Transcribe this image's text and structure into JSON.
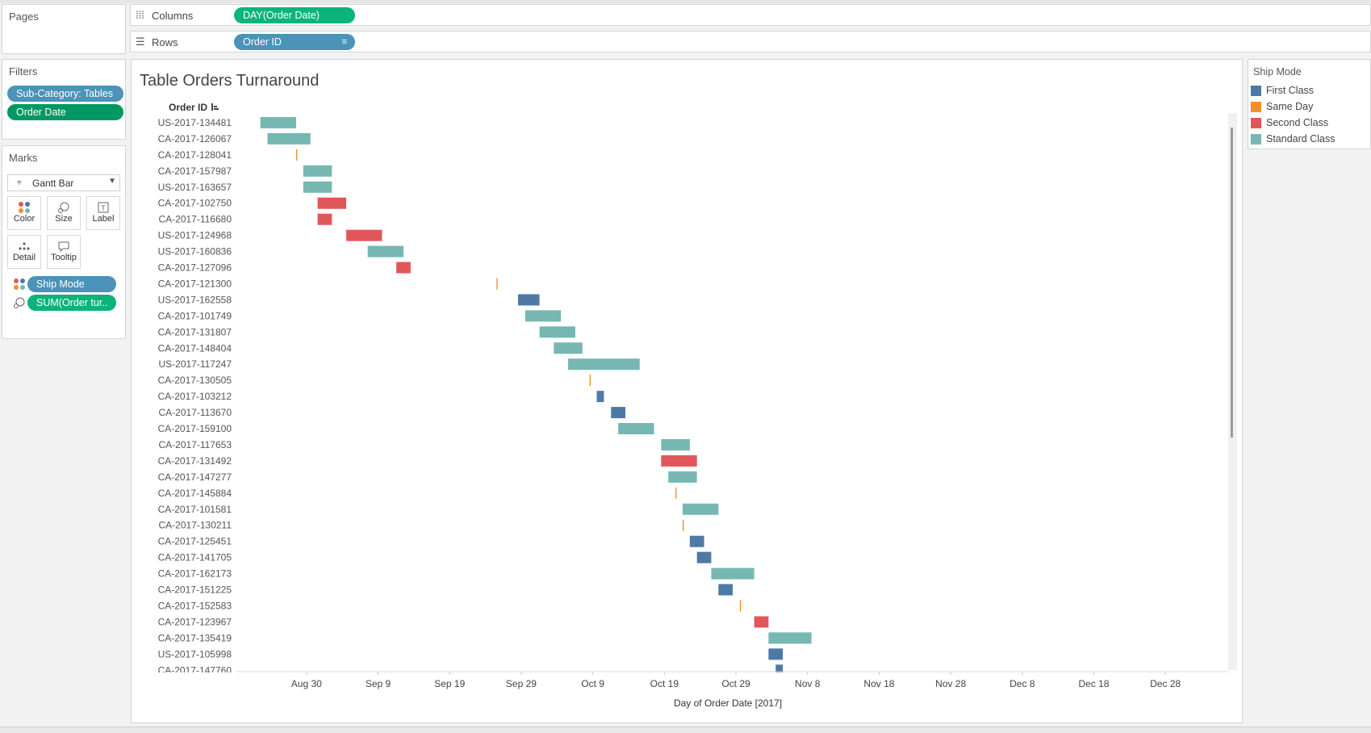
{
  "pages": {
    "title": "Pages"
  },
  "filters": {
    "title": "Filters",
    "pills": [
      "Sub-Category: Tables",
      "Order Date"
    ]
  },
  "marks": {
    "title": "Marks",
    "mark_type": "Gantt Bar",
    "buttons": [
      "Color",
      "Size",
      "Label",
      "Detail",
      "Tooltip"
    ],
    "pills": [
      "Ship Mode",
      "SUM(Order tur.."
    ]
  },
  "shelves": {
    "columns_label": "Columns",
    "columns_pill": "DAY(Order Date)",
    "rows_label": "Rows",
    "rows_pill": "Order ID"
  },
  "legend": {
    "title": "Ship Mode",
    "items": [
      {
        "label": "First Class",
        "color": "#4e79a7"
      },
      {
        "label": "Same Day",
        "color": "#f28e2b"
      },
      {
        "label": "Second Class",
        "color": "#e15759"
      },
      {
        "label": "Standard Class",
        "color": "#76b7b2"
      }
    ]
  },
  "chart_data": {
    "type": "gantt",
    "title": "Table Orders Turnaround",
    "xlabel": "Day of Order Date [2017]",
    "ylabel": "Order ID",
    "x_ticks": [
      "Aug 30",
      "Sep 9",
      "Sep 19",
      "Sep 29",
      "Oct 9",
      "Oct 19",
      "Oct 29",
      "Nov 8",
      "Nov 18",
      "Nov 28",
      "Dec 8",
      "Dec 18",
      "Dec 28"
    ],
    "x_range": [
      "2017-08-21",
      "2018-01-02"
    ],
    "tasks": [
      {
        "id": "US-2017-134481",
        "start": "2017-08-24",
        "end": "2017-08-29",
        "mode": "Standard Class"
      },
      {
        "id": "CA-2017-126067",
        "start": "2017-08-25",
        "end": "2017-08-31",
        "mode": "Standard Class"
      },
      {
        "id": "CA-2017-128041",
        "start": "2017-08-29",
        "end": "2017-08-29",
        "mode": "Same Day"
      },
      {
        "id": "CA-2017-157987",
        "start": "2017-08-30",
        "end": "2017-09-03",
        "mode": "Standard Class"
      },
      {
        "id": "US-2017-163657",
        "start": "2017-08-30",
        "end": "2017-09-03",
        "mode": "Standard Class"
      },
      {
        "id": "CA-2017-102750",
        "start": "2017-09-01",
        "end": "2017-09-05",
        "mode": "Second Class"
      },
      {
        "id": "CA-2017-116680",
        "start": "2017-09-01",
        "end": "2017-09-03",
        "mode": "Second Class"
      },
      {
        "id": "US-2017-124968",
        "start": "2017-09-05",
        "end": "2017-09-10",
        "mode": "Second Class"
      },
      {
        "id": "US-2017-160836",
        "start": "2017-09-08",
        "end": "2017-09-13",
        "mode": "Standard Class"
      },
      {
        "id": "CA-2017-127096",
        "start": "2017-09-12",
        "end": "2017-09-14",
        "mode": "Second Class"
      },
      {
        "id": "CA-2017-121300",
        "start": "2017-09-26",
        "end": "2017-09-26",
        "mode": "Same Day"
      },
      {
        "id": "US-2017-162558",
        "start": "2017-09-29",
        "end": "2017-10-02",
        "mode": "First Class"
      },
      {
        "id": "CA-2017-101749",
        "start": "2017-09-30",
        "end": "2017-10-05",
        "mode": "Standard Class"
      },
      {
        "id": "CA-2017-131807",
        "start": "2017-10-02",
        "end": "2017-10-07",
        "mode": "Standard Class"
      },
      {
        "id": "CA-2017-148404",
        "start": "2017-10-04",
        "end": "2017-10-08",
        "mode": "Standard Class"
      },
      {
        "id": "US-2017-117247",
        "start": "2017-10-06",
        "end": "2017-10-16",
        "mode": "Standard Class"
      },
      {
        "id": "CA-2017-130505",
        "start": "2017-10-09",
        "end": "2017-10-09",
        "mode": "Same Day"
      },
      {
        "id": "CA-2017-103212",
        "start": "2017-10-10",
        "end": "2017-10-11",
        "mode": "First Class"
      },
      {
        "id": "CA-2017-113670",
        "start": "2017-10-12",
        "end": "2017-10-14",
        "mode": "First Class"
      },
      {
        "id": "CA-2017-159100",
        "start": "2017-10-13",
        "end": "2017-10-18",
        "mode": "Standard Class"
      },
      {
        "id": "CA-2017-117653",
        "start": "2017-10-19",
        "end": "2017-10-23",
        "mode": "Standard Class"
      },
      {
        "id": "CA-2017-131492",
        "start": "2017-10-19",
        "end": "2017-10-24",
        "mode": "Second Class"
      },
      {
        "id": "CA-2017-147277",
        "start": "2017-10-20",
        "end": "2017-10-24",
        "mode": "Standard Class"
      },
      {
        "id": "CA-2017-145884",
        "start": "2017-10-21",
        "end": "2017-10-21",
        "mode": "Same Day"
      },
      {
        "id": "CA-2017-101581",
        "start": "2017-10-22",
        "end": "2017-10-27",
        "mode": "Standard Class"
      },
      {
        "id": "CA-2017-130211",
        "start": "2017-10-22",
        "end": "2017-10-22",
        "mode": "Same Day"
      },
      {
        "id": "CA-2017-125451",
        "start": "2017-10-23",
        "end": "2017-10-25",
        "mode": "First Class"
      },
      {
        "id": "CA-2017-141705",
        "start": "2017-10-24",
        "end": "2017-10-26",
        "mode": "First Class"
      },
      {
        "id": "CA-2017-162173",
        "start": "2017-10-26",
        "end": "2017-11-01",
        "mode": "Standard Class"
      },
      {
        "id": "CA-2017-151225",
        "start": "2017-10-27",
        "end": "2017-10-29",
        "mode": "First Class"
      },
      {
        "id": "CA-2017-152583",
        "start": "2017-10-30",
        "end": "2017-10-30",
        "mode": "Same Day"
      },
      {
        "id": "CA-2017-123967",
        "start": "2017-11-01",
        "end": "2017-11-03",
        "mode": "Second Class"
      },
      {
        "id": "CA-2017-135419",
        "start": "2017-11-03",
        "end": "2017-11-09",
        "mode": "Standard Class"
      },
      {
        "id": "US-2017-105998",
        "start": "2017-11-03",
        "end": "2017-11-05",
        "mode": "First Class"
      },
      {
        "id": "CA-2017-147760",
        "start": "2017-11-04",
        "end": "2017-11-05",
        "mode": "First Class"
      }
    ]
  }
}
